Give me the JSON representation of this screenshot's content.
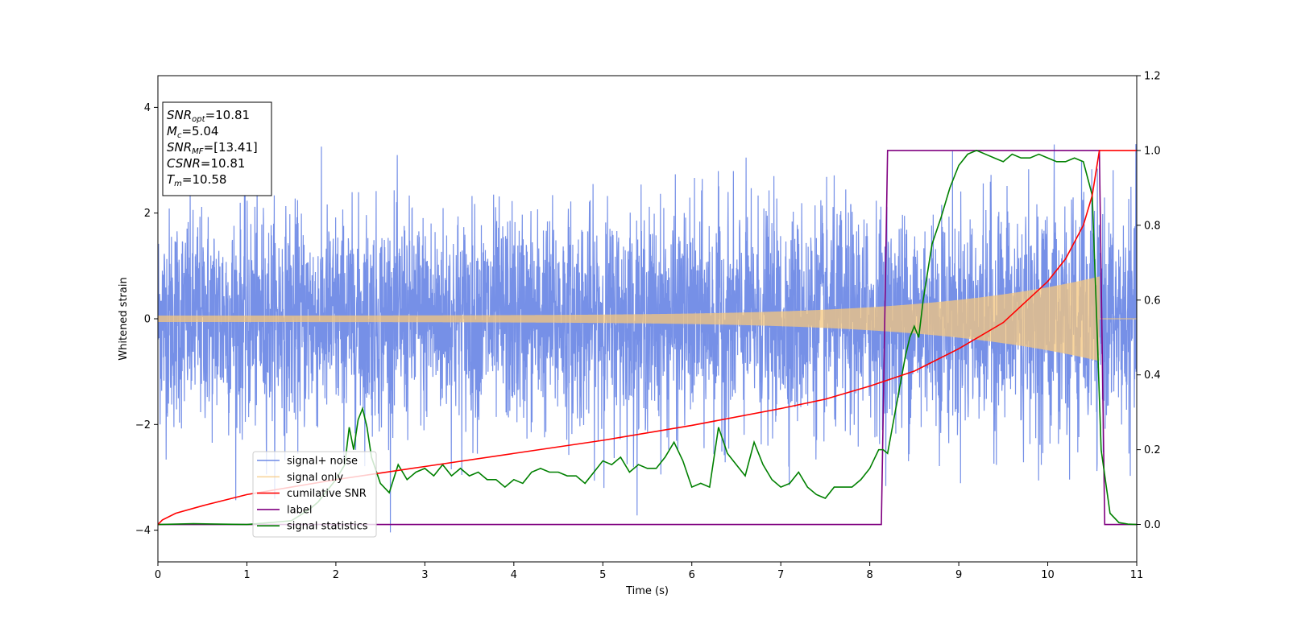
{
  "chart_data": {
    "type": "line",
    "xlabel": "Time (s)",
    "ylabel": "Whitened strain",
    "xlim": [
      0,
      11
    ],
    "ylim_left": [
      -4.6,
      4.6
    ],
    "ylim_right": [
      -0.1,
      1.2
    ],
    "x_ticks": [
      0,
      1,
      2,
      3,
      4,
      5,
      6,
      7,
      8,
      9,
      10,
      11
    ],
    "x_tick_labels": [
      "0",
      "1",
      "2",
      "3",
      "4",
      "5",
      "6",
      "7",
      "8",
      "9",
      "10",
      "11"
    ],
    "y_left_ticks": [
      -4,
      -2,
      0,
      2,
      4
    ],
    "y_left_tick_labels": [
      "−4",
      "−2",
      "0",
      "2",
      "4"
    ],
    "y_right_ticks": [
      0.0,
      0.2,
      0.4,
      0.6,
      0.8,
      1.0,
      1.2
    ],
    "y_right_tick_labels": [
      "0.0",
      "0.2",
      "0.4",
      "0.6",
      "0.8",
      "1.0",
      "1.2"
    ],
    "legend_position": "lower-left",
    "info_box": {
      "lines": [
        {
          "sym": "SNR",
          "sub": "opt",
          "val": "=10.81"
        },
        {
          "sym": "M",
          "sub": "c",
          "val": "=5.04"
        },
        {
          "sym": "SNR",
          "sub": "MF",
          "val": "=[13.41]"
        },
        {
          "sym": "CSNR",
          "sub": "",
          "val": "=10.81"
        },
        {
          "sym": "T",
          "sub": "m",
          "val": "=10.58"
        }
      ]
    },
    "series": [
      {
        "name": "signal+ noise",
        "axis": "left",
        "color": "#6f8ae6",
        "kind": "noise",
        "noise_std": 1.0,
        "chirp_end": 10.58,
        "chirp_amp_start": 0.06,
        "chirp_amp_end": 0.75
      },
      {
        "name": "signal only",
        "axis": "left",
        "color": "#f5c77e",
        "kind": "chirp",
        "chirp_end": 10.58,
        "amp_start": 0.06,
        "amp_end": 0.75
      },
      {
        "name": "cumilative SNR",
        "axis": "right",
        "color": "#ff0000",
        "x": [
          0.0,
          0.05,
          0.2,
          0.5,
          1.0,
          1.5,
          2.0,
          3.0,
          4.0,
          5.0,
          6.0,
          7.0,
          7.5,
          8.0,
          8.5,
          9.0,
          9.5,
          10.0,
          10.2,
          10.4,
          10.5,
          10.58,
          11.0
        ],
        "y": [
          0.0,
          0.012,
          0.03,
          0.05,
          0.08,
          0.1,
          0.12,
          0.155,
          0.19,
          0.225,
          0.265,
          0.31,
          0.335,
          0.37,
          0.41,
          0.47,
          0.54,
          0.65,
          0.71,
          0.8,
          0.88,
          1.0,
          1.0
        ]
      },
      {
        "name": "label",
        "axis": "right",
        "color": "#800080",
        "x": [
          0.0,
          8.13,
          8.2,
          10.58,
          10.64,
          11.0
        ],
        "y": [
          0.0,
          0.0,
          1.0,
          1.0,
          0.0,
          0.0
        ]
      },
      {
        "name": "signal statistics",
        "axis": "right",
        "color": "#008000",
        "x": [
          0.0,
          0.4,
          1.0,
          1.5,
          1.7,
          1.8,
          1.9,
          2.0,
          2.1,
          2.15,
          2.2,
          2.25,
          2.3,
          2.35,
          2.4,
          2.5,
          2.6,
          2.7,
          2.8,
          2.9,
          3.0,
          3.1,
          3.2,
          3.3,
          3.4,
          3.5,
          3.6,
          3.7,
          3.8,
          3.9,
          4.0,
          4.1,
          4.2,
          4.3,
          4.4,
          4.5,
          4.6,
          4.7,
          4.8,
          4.9,
          5.0,
          5.1,
          5.2,
          5.3,
          5.4,
          5.5,
          5.6,
          5.7,
          5.8,
          5.9,
          6.0,
          6.1,
          6.2,
          6.3,
          6.4,
          6.5,
          6.6,
          6.7,
          6.8,
          6.9,
          7.0,
          7.1,
          7.2,
          7.3,
          7.4,
          7.5,
          7.6,
          7.7,
          7.8,
          7.9,
          8.0,
          8.1,
          8.15,
          8.2,
          8.3,
          8.4,
          8.45,
          8.5,
          8.55,
          8.6,
          8.7,
          8.8,
          8.9,
          9.0,
          9.1,
          9.2,
          9.3,
          9.4,
          9.5,
          9.6,
          9.7,
          9.8,
          9.9,
          10.0,
          10.1,
          10.2,
          10.3,
          10.4,
          10.5,
          10.55,
          10.6,
          10.7,
          10.8,
          10.9,
          11.0
        ],
        "y": [
          0.0,
          0.002,
          0.0,
          0.01,
          0.04,
          0.06,
          0.09,
          0.12,
          0.16,
          0.26,
          0.2,
          0.28,
          0.31,
          0.26,
          0.18,
          0.11,
          0.085,
          0.16,
          0.12,
          0.14,
          0.15,
          0.13,
          0.16,
          0.13,
          0.15,
          0.13,
          0.14,
          0.12,
          0.12,
          0.1,
          0.12,
          0.11,
          0.14,
          0.15,
          0.14,
          0.14,
          0.13,
          0.13,
          0.11,
          0.14,
          0.17,
          0.16,
          0.18,
          0.14,
          0.16,
          0.15,
          0.15,
          0.18,
          0.22,
          0.17,
          0.1,
          0.11,
          0.1,
          0.26,
          0.19,
          0.16,
          0.13,
          0.22,
          0.16,
          0.12,
          0.1,
          0.11,
          0.14,
          0.1,
          0.08,
          0.07,
          0.1,
          0.1,
          0.1,
          0.12,
          0.15,
          0.2,
          0.2,
          0.19,
          0.32,
          0.45,
          0.5,
          0.53,
          0.5,
          0.6,
          0.75,
          0.82,
          0.9,
          0.96,
          0.99,
          1.0,
          0.99,
          0.98,
          0.97,
          0.99,
          0.98,
          0.98,
          0.99,
          0.98,
          0.97,
          0.97,
          0.98,
          0.97,
          0.88,
          0.55,
          0.2,
          0.03,
          0.005,
          0.001,
          0.0
        ]
      }
    ]
  }
}
